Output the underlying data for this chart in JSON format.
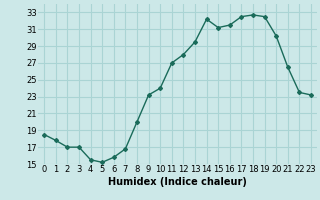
{
  "x": [
    0,
    1,
    2,
    3,
    4,
    5,
    6,
    7,
    8,
    9,
    10,
    11,
    12,
    13,
    14,
    15,
    16,
    17,
    18,
    19,
    20,
    21,
    22,
    23
  ],
  "y": [
    18.5,
    17.8,
    17.0,
    17.0,
    15.5,
    15.2,
    15.8,
    16.8,
    20.0,
    23.2,
    24.0,
    27.0,
    28.0,
    29.5,
    32.2,
    31.2,
    31.5,
    32.5,
    32.7,
    32.5,
    30.2,
    26.5,
    23.5,
    23.2
  ],
  "line_color": "#1a6b5a",
  "marker": "D",
  "marker_size": 2,
  "bg_color": "#cce8e8",
  "grid_color": "#aad4d4",
  "xlabel": "Humidex (Indice chaleur)",
  "xlim": [
    -0.5,
    23.5
  ],
  "ylim": [
    15,
    34
  ],
  "yticks": [
    15,
    17,
    19,
    21,
    23,
    25,
    27,
    29,
    31,
    33
  ],
  "xtick_labels": [
    "0",
    "1",
    "2",
    "3",
    "4",
    "5",
    "6",
    "7",
    "8",
    "9",
    "10",
    "11",
    "12",
    "13",
    "14",
    "15",
    "16",
    "17",
    "18",
    "19",
    "20",
    "21",
    "22",
    "23"
  ],
  "xlabel_fontsize": 7,
  "tick_fontsize": 6
}
